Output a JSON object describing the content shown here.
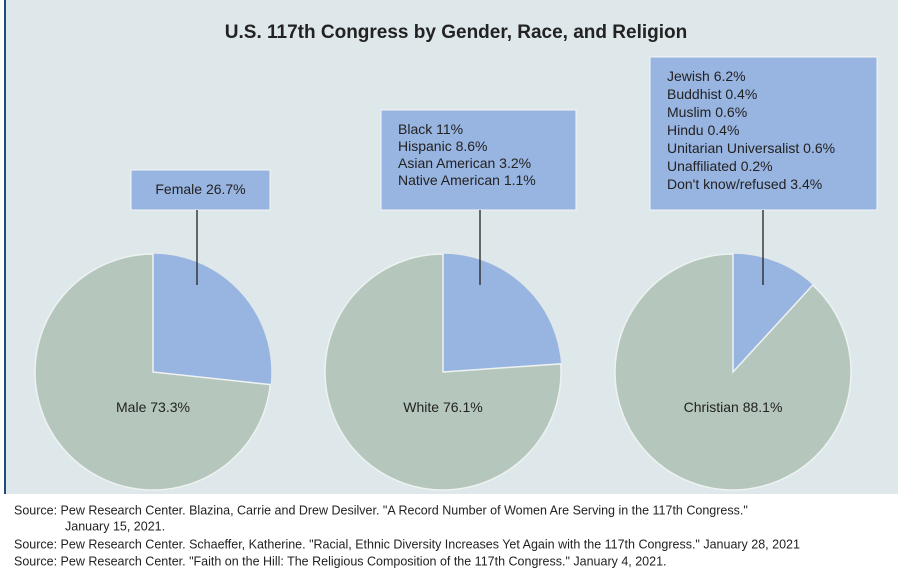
{
  "title": "U.S. 117th Congress by Gender, Race, and Religion",
  "chart_data": [
    {
      "type": "pie",
      "categories": [
        "Female",
        "Male"
      ],
      "values": [
        26.7,
        73.3
      ],
      "value_labels": [
        "26.7%",
        "73.3%"
      ],
      "colors": [
        "#98b4e0",
        "#b5c7bc"
      ]
    },
    {
      "type": "pie",
      "categories": [
        "Black",
        "Hispanic",
        "Asian American",
        "Native American",
        "White"
      ],
      "values": [
        11,
        8.6,
        3.2,
        1.1,
        76.1
      ],
      "value_labels": [
        "11%",
        "8.6%",
        "3.2%",
        "1.1%",
        "76.1%"
      ],
      "colors": [
        "#98b4e0",
        "#98b4e0",
        "#98b4e0",
        "#98b4e0",
        "#b5c7bc"
      ]
    },
    {
      "type": "pie",
      "categories": [
        "Jewish",
        "Buddhist",
        "Muslim",
        "Hindu",
        "Unitarian Universalist",
        "Unaffiliated",
        "Don't know/refused",
        "Christian"
      ],
      "values": [
        6.2,
        0.4,
        0.6,
        0.4,
        0.6,
        0.2,
        3.4,
        88.1
      ],
      "value_labels": [
        "6.2%",
        "0.4%",
        "0.6%",
        "0.4%",
        "0.6%",
        "0.2%",
        "3.4%",
        "88.1%"
      ],
      "colors": [
        "#98b4e0",
        "#98b4e0",
        "#98b4e0",
        "#98b4e0",
        "#98b4e0",
        "#98b4e0",
        "#98b4e0",
        "#b5c7bc"
      ]
    }
  ],
  "sources": [
    "Source: Pew Research Center. Blazina, Carrie and Drew Desilver. \"A Record Number of Women Are Serving in the 117th Congress.\"",
    "January 15, 2021.",
    "Source: Pew Research Center. Schaeffer, Katherine. \"Racial, Ethnic Diversity Increases Yet Again with the 117th Congress.\" January 28, 2021",
    "Source: Pew Research Center. \"Faith on the Hill: The Religious Composition of the 117th Congress.\" January 4, 2021."
  ]
}
